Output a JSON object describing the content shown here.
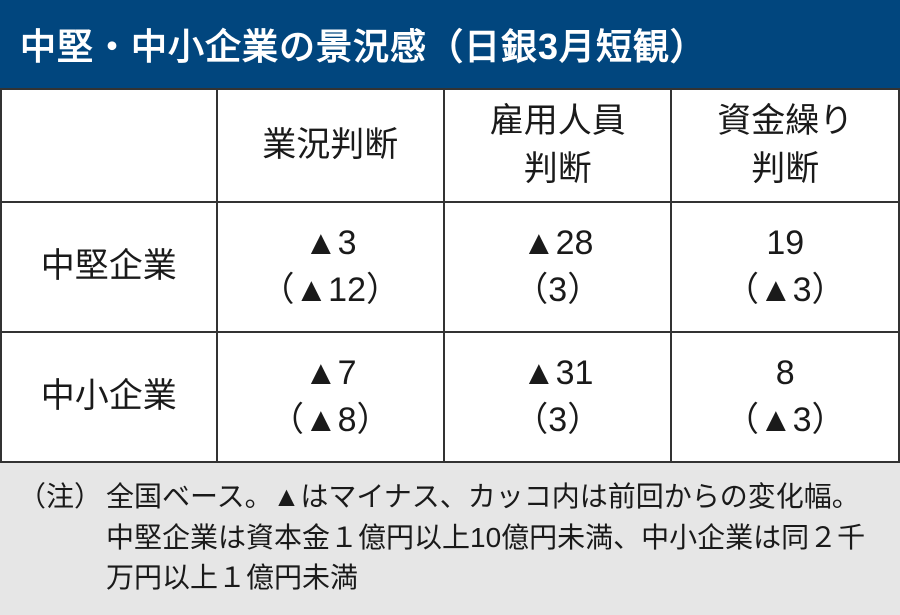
{
  "title": "中堅・中小企業の景況感（日銀3月短観）",
  "columns": {
    "col1": "業況判断",
    "col2": "雇用人員\n判断",
    "col3": "資金繰り\n判断"
  },
  "rows": [
    {
      "label": "中堅企業",
      "c1_main": "▲3",
      "c1_sub": "（▲12）",
      "c2_main": "▲28",
      "c2_sub": "（3）",
      "c3_main": "19",
      "c3_sub": "（▲3）"
    },
    {
      "label": "中小企業",
      "c1_main": "▲7",
      "c1_sub": "（▲8）",
      "c2_main": "▲31",
      "c2_sub": "（3）",
      "c3_main": "8",
      "c3_sub": "（▲3）"
    }
  ],
  "footnote": {
    "label": "（注）",
    "text": "全国ベース。▲はマイナス、カッコ内は前回からの変化幅。中堅企業は資本金１億円以上10億円未満、中小企業は同２千万円以上１億円未満"
  },
  "styles": {
    "header_bg": "#01467e",
    "header_fg": "#ffffff",
    "border_color": "#333333",
    "footnote_bg": "#e6e6e6",
    "title_fontsize": 36,
    "cell_fontsize": 34,
    "footnote_fontsize": 28
  }
}
